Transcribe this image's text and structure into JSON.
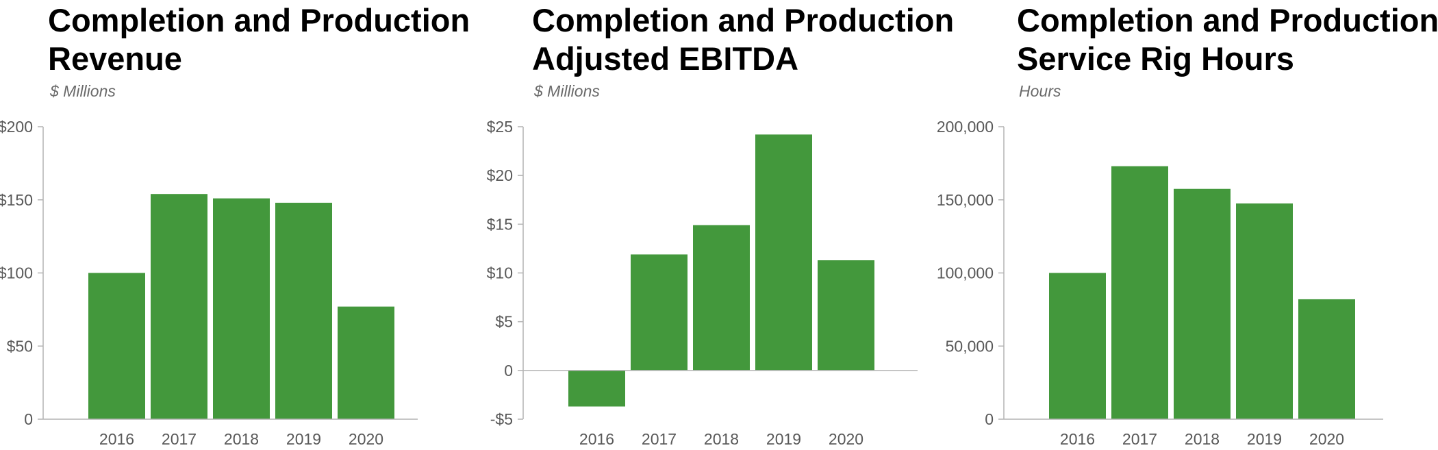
{
  "chart_data": [
    {
      "type": "bar",
      "title_lines": [
        "Completion and Production",
        "Revenue"
      ],
      "subtitle": "$ Millions",
      "categories": [
        "2016",
        "2017",
        "2018",
        "2019",
        "2020"
      ],
      "values": [
        100,
        154,
        151,
        148,
        77
      ],
      "ylim": [
        0,
        200
      ],
      "yticks": [
        0,
        50,
        100,
        150,
        200
      ],
      "ytick_labels": [
        "0",
        "$50",
        "$100",
        "$150",
        "$200"
      ],
      "xlabel": "",
      "ylabel": "",
      "grid": false,
      "bar_color": "#43983C"
    },
    {
      "type": "bar",
      "title_lines": [
        "Completion and Production",
        "Adjusted EBITDA"
      ],
      "subtitle": "$ Millions",
      "categories": [
        "2016",
        "2017",
        "2018",
        "2019",
        "2020"
      ],
      "values": [
        -3.7,
        11.9,
        14.9,
        24.2,
        11.3
      ],
      "ylim": [
        -5,
        25
      ],
      "yticks": [
        -5,
        0,
        5,
        10,
        15,
        20,
        25
      ],
      "ytick_labels": [
        "-$5",
        "0",
        "$5",
        "$10",
        "$15",
        "$20",
        "$25"
      ],
      "xlabel": "",
      "ylabel": "",
      "grid": false,
      "bar_color": "#43983C"
    },
    {
      "type": "bar",
      "title_lines": [
        "Completion and Production",
        "Service Rig Hours"
      ],
      "subtitle": "Hours",
      "categories": [
        "2016",
        "2017",
        "2018",
        "2019",
        "2020"
      ],
      "values": [
        100000,
        173000,
        157500,
        147500,
        82000
      ],
      "ylim": [
        0,
        200000
      ],
      "yticks": [
        0,
        50000,
        100000,
        150000,
        200000
      ],
      "ytick_labels": [
        "0",
        "50,000",
        "100,000",
        "150,000",
        "200,000"
      ],
      "xlabel": "",
      "ylabel": "",
      "grid": false,
      "bar_color": "#43983C"
    }
  ]
}
